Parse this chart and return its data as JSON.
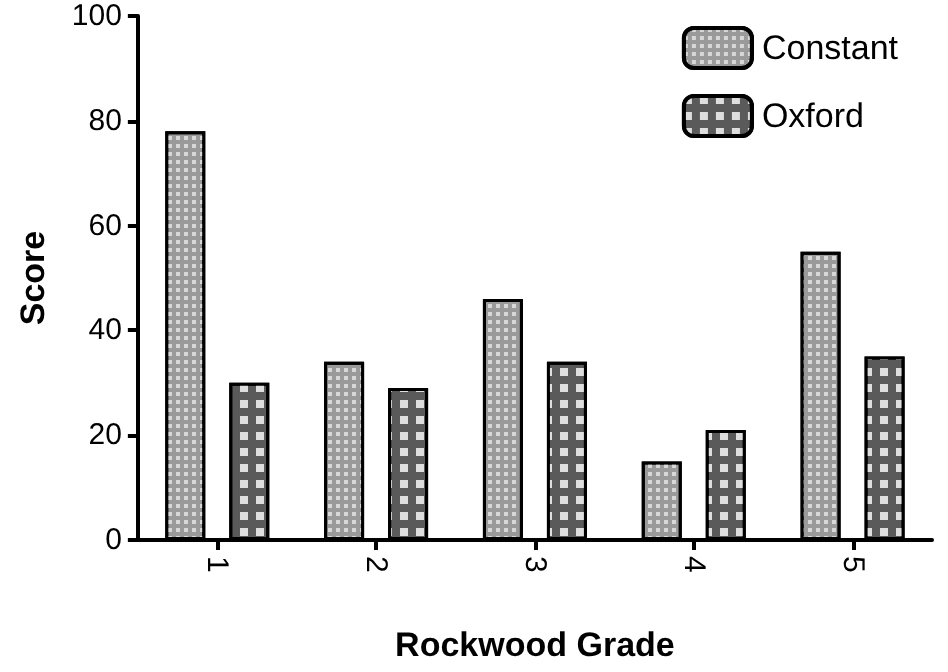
{
  "chart_data": {
    "type": "bar",
    "xlabel": "Rockwood Grade",
    "ylabel": "Score",
    "categories": [
      "1",
      "2",
      "3",
      "4",
      "5"
    ],
    "series": [
      {
        "name": "Constant",
        "color": "#9a9a9a",
        "values": [
          78,
          34,
          46,
          15,
          55
        ]
      },
      {
        "name": "Oxford",
        "color": "#5a5a5a",
        "values": [
          30,
          29,
          34,
          21,
          35
        ]
      }
    ],
    "ylim": [
      0,
      100
    ],
    "yticks": [
      0,
      20,
      40,
      60,
      80,
      100
    ],
    "grid": false,
    "legend": "top right"
  }
}
